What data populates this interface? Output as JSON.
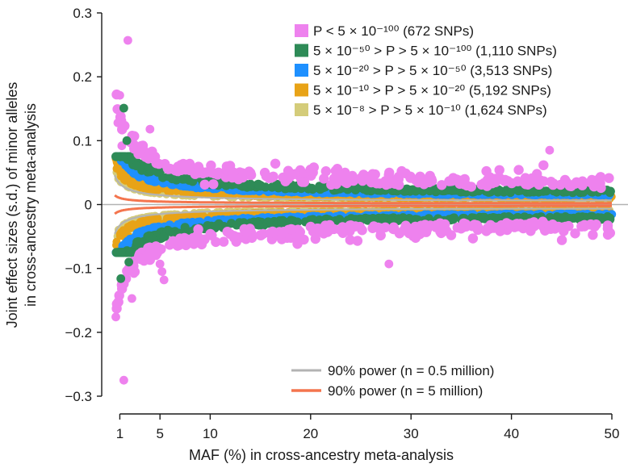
{
  "chart_data": {
    "type": "scatter",
    "ylabel_line1": "Joint effect sizes (s.d.) of minor alleles",
    "ylabel_line2": "in cross-ancestry meta-analysis",
    "xlabel": "MAF (%) in cross-ancestry meta-analysis",
    "xlim": [
      0,
      50
    ],
    "ylim": [
      -0.3,
      0.3
    ],
    "xticks": [
      1,
      5,
      10,
      20,
      30,
      40,
      50
    ],
    "yticks": [
      -0.3,
      -0.2,
      -0.1,
      0,
      0.1,
      0.2,
      0.3
    ],
    "ytick_labels": [
      "−0.3",
      "−0.2",
      "−0.1",
      "0",
      "0.1",
      "0.2",
      "0.3"
    ],
    "legend_position": "top-right",
    "series": [
      {
        "key": "p1",
        "color": "#ee82ee",
        "label": "P < 5 × 10⁻¹⁰⁰ (672 SNPs)",
        "count": 672
      },
      {
        "key": "p2",
        "color": "#2e8b57",
        "label": "5 × 10⁻⁵⁰ > P > 5 × 10⁻¹⁰⁰ (1,110 SNPs)",
        "count": 1110
      },
      {
        "key": "p3",
        "color": "#1e90ff",
        "label": "5 × 10⁻²⁰ > P > 5 × 10⁻⁵⁰ (3,513 SNPs)",
        "count": 3513
      },
      {
        "key": "p4",
        "color": "#e8a317",
        "label": "5 × 10⁻¹⁰ > P > 5 × 10⁻²⁰ (5,192 SNPs)",
        "count": 5192
      },
      {
        "key": "p5",
        "color": "#d4cc7a",
        "label": "5 × 10⁻⁸ > P > 5 × 10⁻¹⁰ (1,624 SNPs)",
        "count": 1624
      }
    ],
    "power_curves": [
      {
        "key": "n05",
        "color": "#b3b3b3",
        "label": "90% power (n = 0.5 million)",
        "n_million": 0.5
      },
      {
        "key": "n5",
        "color": "#f4754e",
        "label": "90% power (n = 5 million)",
        "n_million": 5
      }
    ],
    "outliers": [
      {
        "series": "p1",
        "maf": 1.8,
        "beta": 0.257
      },
      {
        "series": "p1",
        "maf": 1.4,
        "beta": -0.275
      },
      {
        "series": "p1",
        "maf": 0.6,
        "beta": -0.176
      },
      {
        "series": "p1",
        "maf": 1.0,
        "beta": 0.171
      },
      {
        "series": "p1",
        "maf": 0.8,
        "beta": 0.128
      },
      {
        "series": "p1",
        "maf": 4.0,
        "beta": 0.118
      },
      {
        "series": "p1",
        "maf": 2.2,
        "beta": -0.147
      },
      {
        "series": "p1",
        "maf": 5.4,
        "beta": -0.118
      },
      {
        "series": "p1",
        "maf": 5.2,
        "beta": -0.105
      },
      {
        "series": "p1",
        "maf": 5.0,
        "beta": -0.093
      },
      {
        "series": "p1",
        "maf": 1.2,
        "beta": 0.092
      },
      {
        "series": "p1",
        "maf": 27.8,
        "beta": -0.093
      },
      {
        "series": "p1",
        "maf": 43.8,
        "beta": 0.085
      },
      {
        "series": "p1",
        "maf": 2.4,
        "beta": -0.108
      },
      {
        "series": "p2",
        "maf": 1.4,
        "beta": 0.151
      },
      {
        "series": "p2",
        "maf": 1.1,
        "beta": -0.116
      },
      {
        "series": "p2",
        "maf": 1.7,
        "beta": 0.1
      },
      {
        "series": "p2",
        "maf": 1.9,
        "beta": -0.09
      }
    ]
  }
}
